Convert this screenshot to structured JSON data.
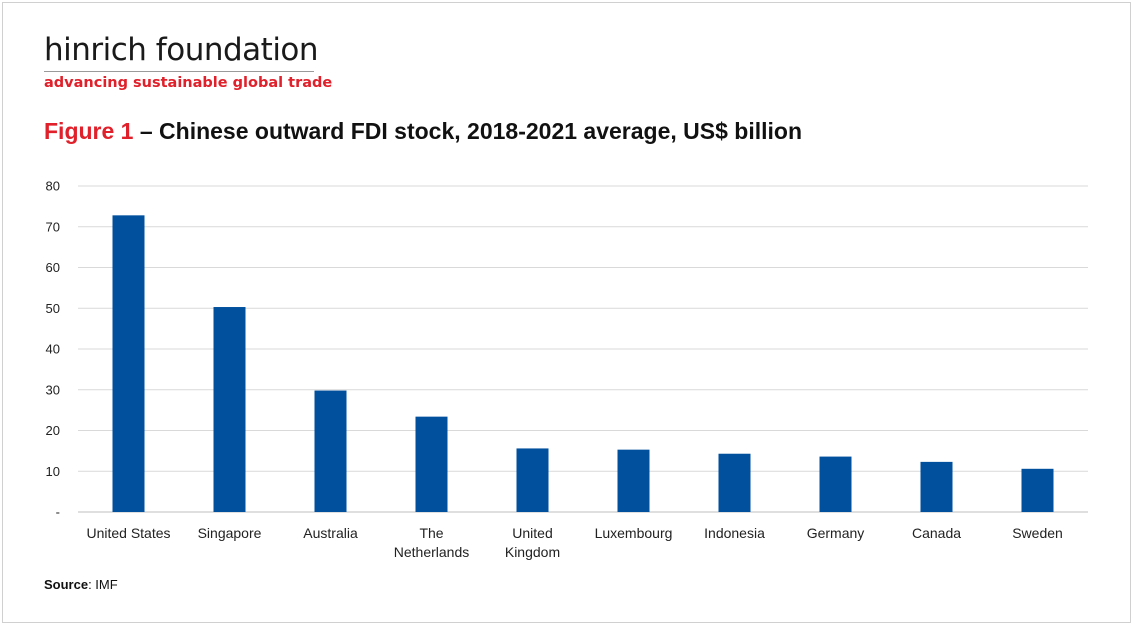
{
  "brand": {
    "name": "hinrich foundation",
    "tagline": "advancing sustainable global trade",
    "accent_color": "#e0202a"
  },
  "title": {
    "figure_label": "Figure 1",
    "text": " – Chinese outward FDI stock, 2018-2021 average, US$ billion"
  },
  "source": {
    "label": "Source",
    "text": ": IMF"
  },
  "chart_data": {
    "type": "bar",
    "title": "Figure 1 – Chinese outward FDI stock, 2018-2021 average, US$ billion",
    "xlabel": "",
    "ylabel": "",
    "categories": [
      [
        "United States"
      ],
      [
        "Singapore"
      ],
      [
        "Australia"
      ],
      [
        "The",
        "Netherlands"
      ],
      [
        "United",
        "Kingdom"
      ],
      [
        "Luxembourg"
      ],
      [
        "Indonesia"
      ],
      [
        "Germany"
      ],
      [
        "Canada"
      ],
      [
        "Sweden"
      ]
    ],
    "values": [
      72.8,
      50.3,
      29.8,
      23.4,
      15.6,
      15.3,
      14.3,
      13.6,
      12.3,
      10.6
    ],
    "ylim": [
      0,
      80
    ],
    "yticks": [
      0,
      10,
      20,
      30,
      40,
      50,
      60,
      70,
      80
    ],
    "ytick_labels": [
      "-",
      "10",
      "20",
      "30",
      "40",
      "50",
      "60",
      "70",
      "80"
    ],
    "bar_color": "#00509e",
    "grid": true,
    "legend": "none"
  }
}
